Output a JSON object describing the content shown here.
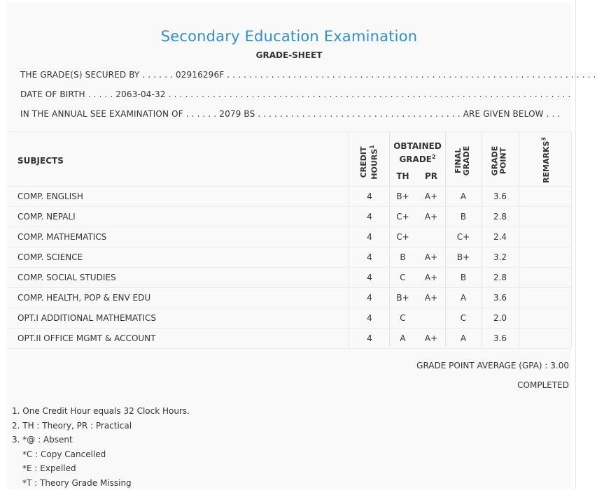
{
  "header": {
    "title": "Secondary Education Examination",
    "subtitle": "GRADE-SHEET"
  },
  "info": {
    "secured_label": "THE GRADE(S) SECURED BY",
    "symbol_no": "02916296F",
    "dob_label": "DATE OF BIRTH",
    "dob": "2063-04-32",
    "exam_label": "IN THE ANNUAL SEE EXAMINATION OF",
    "exam_year": "2079 BS",
    "given_below": "ARE GIVEN BELOW"
  },
  "table": {
    "headers": {
      "subjects": "SUBJECTS",
      "credit": "CREDIT",
      "hours": "HOURS",
      "obtained": "OBTAINED",
      "grade": "GRADE",
      "th": "TH",
      "pr": "PR",
      "final": "FINAL",
      "final_grade": "GRADE",
      "gp_grade": "GRADE",
      "gp_point": "POINT",
      "remarks": "REMARKS"
    },
    "rows": [
      {
        "subject": "COMP. ENGLISH",
        "credit": "4",
        "th": "B+",
        "pr": "A+",
        "final": "A",
        "gp": "3.6"
      },
      {
        "subject": "COMP. NEPALI",
        "credit": "4",
        "th": "C+",
        "pr": "A+",
        "final": "B",
        "gp": "2.8"
      },
      {
        "subject": "COMP. MATHEMATICS",
        "credit": "4",
        "th": "C+",
        "pr": "",
        "final": "C+",
        "gp": "2.4"
      },
      {
        "subject": "COMP. SCIENCE",
        "credit": "4",
        "th": "B",
        "pr": "A+",
        "final": "B+",
        "gp": "3.2"
      },
      {
        "subject": "COMP. SOCIAL STUDIES",
        "credit": "4",
        "th": "C",
        "pr": "A+",
        "final": "B",
        "gp": "2.8"
      },
      {
        "subject": "COMP. HEALTH, POP & ENV EDU",
        "credit": "4",
        "th": "B+",
        "pr": "A+",
        "final": "A",
        "gp": "3.6"
      },
      {
        "subject": "OPT.I ADDITIONAL MATHEMATICS",
        "credit": "4",
        "th": "C",
        "pr": "",
        "final": "C",
        "gp": "2.0"
      },
      {
        "subject": "OPT.II OFFICE MGMT & ACCOUNT",
        "credit": "4",
        "th": "A",
        "pr": "A+",
        "final": "A",
        "gp": "3.6"
      }
    ]
  },
  "summary": {
    "gpa": "GRADE POINT AVERAGE (GPA) : 3.00",
    "status": "COMPLETED"
  },
  "notes": [
    "1. One Credit Hour equals 32 Clock Hours.",
    "2. TH : Theory, PR : Practical",
    "3. *@ : Absent",
    "*C : Copy Cancelled",
    "*E : Expelled",
    "*T : Theory Grade Missing"
  ]
}
